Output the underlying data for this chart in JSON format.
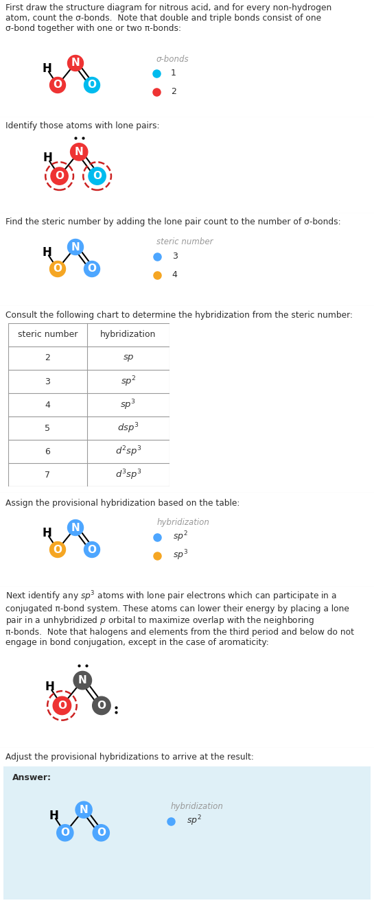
{
  "bg_color": "#ffffff",
  "text_color": "#2d2d2d",
  "section1_text": "First draw the structure diagram for nitrous acid, and for every non-hydrogen\natom, count the σ-bonds.  Note that double and triple bonds consist of one\nσ-bond together with one or two π-bonds:",
  "section2_text": "Identify those atoms with lone pairs:",
  "section3_text": "Find the steric number by adding the lone pair count to the number of σ-bonds:",
  "section4_text": "Consult the following chart to determine the hybridization from the steric number:",
  "section5_text": "Assign the provisional hybridization based on the table:",
  "section6_text": "Next identify any $sp^3$ atoms with lone pair electrons which can participate in a\nconjugated π-bond system. These atoms can lower their energy by placing a lone\npair in a unhybridized $p$ orbital to maximize overlap with the neighboring\nπ-bonds.  Note that halogens and elements from the third period and below do not\nengage in bond conjugation, except in the case of aromaticity:",
  "section7_text": "Adjust the provisional hybridizations to arrive at the result:",
  "atom_O1_s1_color": "#ee3333",
  "atom_N_s1_color": "#ee3333",
  "atom_O2_s1_color": "#00bbee",
  "atom_O1_s3_color": "#f5a623",
  "atom_N_s3_color": "#4da6ff",
  "atom_O2_s3_color": "#4da6ff",
  "legend_sigma1_color": "#00bbee",
  "legend_sigma2_color": "#ee3333",
  "legend_steric3_color": "#4da6ff",
  "legend_steric4_color": "#f5a623",
  "legend_hyb_sp2_color": "#4da6ff",
  "legend_hyb_sp3_color": "#f5a623",
  "answer_bg_color": "#dff0f7",
  "answer_border_color": "#aaccdd",
  "table_steric": [
    2,
    3,
    4,
    5,
    6,
    7
  ],
  "table_hyb": [
    "$sp$",
    "$sp^2$",
    "$sp^3$",
    "$dsp^3$",
    "$d^2sp^3$",
    "$d^3sp^3$"
  ],
  "divider_color": "#cccccc",
  "s6_atom_gray": "#555555",
  "s6_atom_red": "#ee3333"
}
